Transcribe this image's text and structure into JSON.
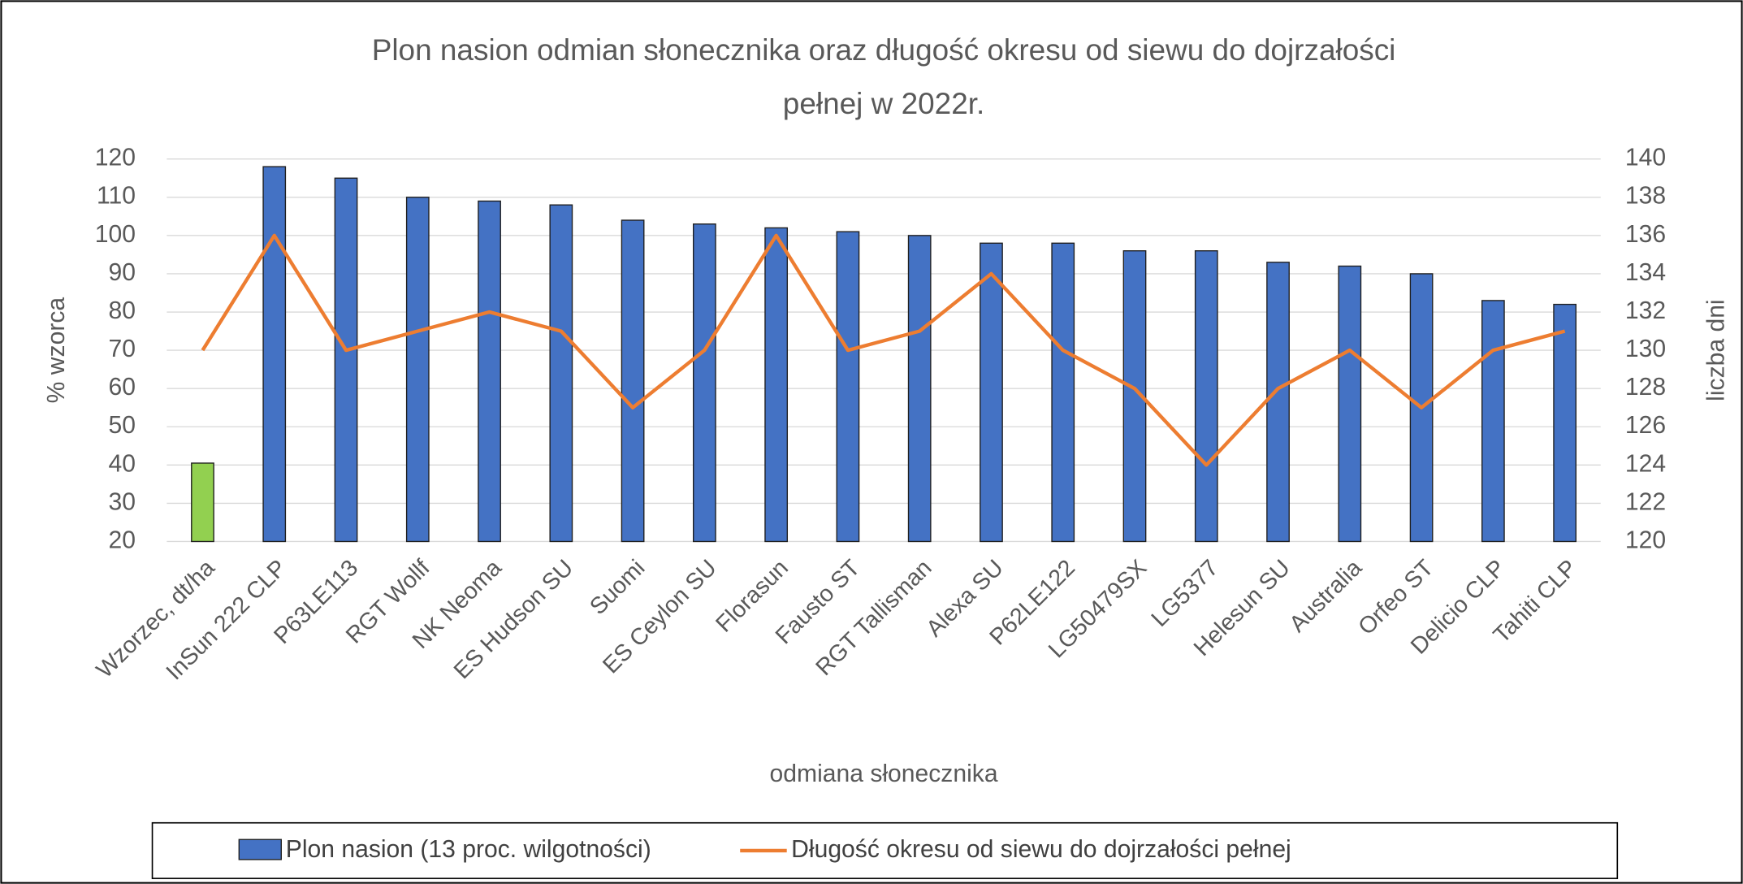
{
  "chart_data": {
    "type": "bar_line",
    "title_lines": [
      "Plon nasion odmian słonecznika oraz długość okresu od siewu do dojrzałości",
      "pełnej w 2022r."
    ],
    "x_label": "odmiana słonecznika",
    "y_label": "% wzorca",
    "y2_label": "liczba dni",
    "categories": [
      "Wzorzec, dt/ha",
      "InSun 222 CLP",
      "P63LE113",
      "RGT Wollf",
      "NK Neoma",
      "ES Hudson SU",
      "Suomi",
      "ES Ceylon SU",
      "Florasun",
      "Fausto ST",
      "RGT Tallisman",
      "Alexa SU",
      "P62LE122",
      "LG50479SX",
      "LG5377",
      "Helesun SU",
      "Australia",
      "Orfeo ST",
      "Delicio CLP",
      "Tahiti CLP"
    ],
    "series": [
      {
        "name": "Plon nasion (13 proc. wilgotności)",
        "type": "bar",
        "color": "#4472c4",
        "colors": [
          "#92d050",
          "#4472c4",
          "#4472c4",
          "#4472c4",
          "#4472c4",
          "#4472c4",
          "#4472c4",
          "#4472c4",
          "#4472c4",
          "#4472c4",
          "#4472c4",
          "#4472c4",
          "#4472c4",
          "#4472c4",
          "#4472c4",
          "#4472c4",
          "#4472c4",
          "#4472c4",
          "#4472c4",
          "#4472c4"
        ],
        "values": [
          40.5,
          118,
          115,
          110,
          109,
          108,
          104,
          103,
          102,
          101,
          100,
          98,
          98,
          96,
          96,
          93,
          92,
          90,
          83,
          82
        ]
      },
      {
        "name": "Długość okresu od siewu do dojrzałości pełnej",
        "type": "line",
        "axis": "y2",
        "color": "#ed7d31",
        "values": [
          130,
          136,
          130,
          131,
          132,
          131,
          127,
          130,
          136,
          130,
          131,
          134,
          130,
          128,
          124,
          128,
          130,
          127,
          130,
          131
        ]
      }
    ],
    "ylim": [
      20,
      120
    ],
    "yticks": [
      20,
      30,
      40,
      50,
      60,
      70,
      80,
      90,
      100,
      110,
      120
    ],
    "y2lim": [
      120,
      140
    ],
    "y2ticks": [
      120,
      122,
      124,
      126,
      128,
      130,
      132,
      134,
      136,
      138,
      140
    ],
    "grid": true,
    "legend": "bottom"
  }
}
